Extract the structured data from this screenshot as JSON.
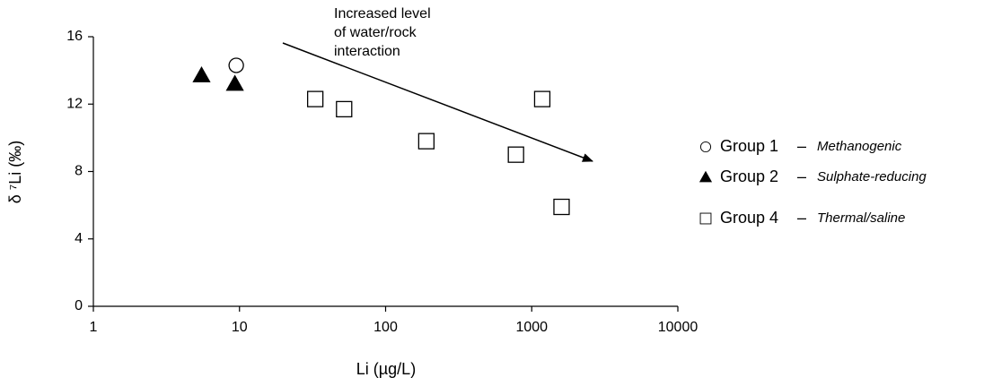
{
  "chart_data": {
    "type": "scatter",
    "x_label": "Li (µg/L)",
    "y_label": "δ ⁷Li (‰)",
    "annotation": [
      "Increased level",
      "of water/rock",
      "interaction"
    ],
    "legend_dash": "–",
    "x_scale": "log",
    "xlim": [
      1,
      10000
    ],
    "xticks": [
      1,
      10,
      100,
      1000,
      10000
    ],
    "ylim": [
      0,
      16
    ],
    "yticks": [
      0,
      4,
      8,
      12,
      16
    ],
    "grid": false,
    "legend_position": "right",
    "series": [
      {
        "name": "Group 1",
        "description": "Methanogenic",
        "marker": "circle",
        "color": "#ffffff",
        "x": [
          9.5
        ],
        "values": [
          14.3
        ]
      },
      {
        "name": "Group 2",
        "description": "Sulphate-reducing",
        "marker": "triangle",
        "color": "#000000",
        "x": [
          5.5,
          9.3
        ],
        "values": [
          13.7,
          13.2
        ]
      },
      {
        "name": "Group 4",
        "description": "Thermal/saline",
        "marker": "square",
        "color": "#ffffff",
        "x": [
          33,
          52,
          190,
          780,
          1180,
          1600
        ],
        "values": [
          12.3,
          11.7,
          9.8,
          9.0,
          12.3,
          5.9
        ]
      }
    ]
  }
}
